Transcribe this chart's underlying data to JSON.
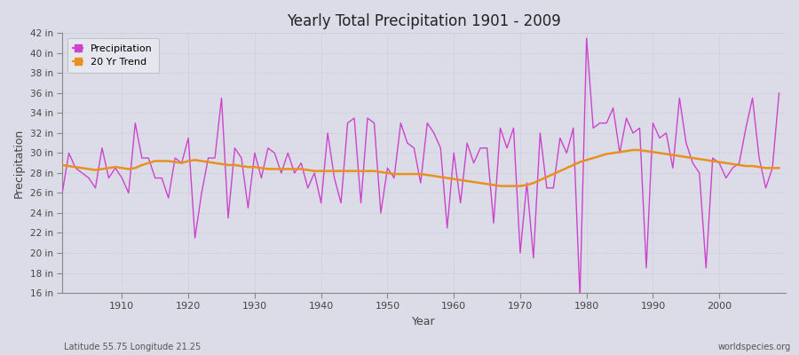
{
  "title": "Yearly Total Precipitation 1901 - 2009",
  "xlabel": "Year",
  "ylabel": "Precipitation",
  "subtitle_left": "Latitude 55.75 Longitude 21.25",
  "subtitle_right": "worldspecies.org",
  "ylim": [
    16,
    42
  ],
  "yticks": [
    16,
    18,
    20,
    22,
    24,
    26,
    28,
    30,
    32,
    34,
    36,
    38,
    40,
    42
  ],
  "ytick_labels": [
    "16 in",
    "18 in",
    "20 in",
    "22 in",
    "24 in",
    "26 in",
    "28 in",
    "30 in",
    "32 in",
    "34 in",
    "36 in",
    "38 in",
    "40 in",
    "42 in"
  ],
  "xticks": [
    1910,
    1920,
    1930,
    1940,
    1950,
    1960,
    1970,
    1980,
    1990,
    2000
  ],
  "precip_color": "#cc44cc",
  "trend_color": "#e89020",
  "bg_color": "#dcdce8",
  "plot_bg_color": "#dcdce8",
  "legend_bg": "#e8e8f0",
  "grid_color": "#c0c0cc",
  "spine_color": "#888888",
  "years": [
    1901,
    1902,
    1903,
    1904,
    1905,
    1906,
    1907,
    1908,
    1909,
    1910,
    1911,
    1912,
    1913,
    1914,
    1915,
    1916,
    1917,
    1918,
    1919,
    1920,
    1921,
    1922,
    1923,
    1924,
    1925,
    1926,
    1927,
    1928,
    1929,
    1930,
    1931,
    1932,
    1933,
    1934,
    1935,
    1936,
    1937,
    1938,
    1939,
    1940,
    1941,
    1942,
    1943,
    1944,
    1945,
    1946,
    1947,
    1948,
    1949,
    1950,
    1951,
    1952,
    1953,
    1954,
    1955,
    1956,
    1957,
    1958,
    1959,
    1960,
    1961,
    1962,
    1963,
    1964,
    1965,
    1966,
    1967,
    1968,
    1969,
    1970,
    1971,
    1972,
    1973,
    1974,
    1975,
    1976,
    1977,
    1978,
    1979,
    1980,
    1981,
    1982,
    1983,
    1984,
    1985,
    1986,
    1987,
    1988,
    1989,
    1990,
    1991,
    1992,
    1993,
    1994,
    1995,
    1996,
    1997,
    1998,
    1999,
    2000,
    2001,
    2002,
    2003,
    2004,
    2005,
    2006,
    2007,
    2008,
    2009
  ],
  "precipitation": [
    26.0,
    30.0,
    28.5,
    28.0,
    27.5,
    26.5,
    30.5,
    27.5,
    28.5,
    27.5,
    26.0,
    33.0,
    29.5,
    29.5,
    27.5,
    27.5,
    25.5,
    29.5,
    29.0,
    31.5,
    21.5,
    26.0,
    29.5,
    29.5,
    35.5,
    23.5,
    30.5,
    29.5,
    24.5,
    30.0,
    27.5,
    30.5,
    30.0,
    28.0,
    30.0,
    28.0,
    29.0,
    26.5,
    28.0,
    25.0,
    32.0,
    27.5,
    25.0,
    33.0,
    33.5,
    25.0,
    33.5,
    33.0,
    24.0,
    28.5,
    27.5,
    33.0,
    31.0,
    30.5,
    27.0,
    33.0,
    32.0,
    30.5,
    22.5,
    30.0,
    25.0,
    31.0,
    29.0,
    30.5,
    30.5,
    23.0,
    32.5,
    30.5,
    32.5,
    20.0,
    27.0,
    19.5,
    32.0,
    26.5,
    26.5,
    31.5,
    30.0,
    32.5,
    15.5,
    41.5,
    32.5,
    33.0,
    33.0,
    34.5,
    30.0,
    33.5,
    32.0,
    32.5,
    18.5,
    33.0,
    31.5,
    32.0,
    28.5,
    35.5,
    31.0,
    29.0,
    28.0,
    18.5,
    29.5,
    29.0,
    27.5,
    28.5,
    29.0,
    32.5,
    35.5,
    29.5,
    26.5,
    28.5,
    36.0
  ],
  "trend": [
    28.8,
    28.7,
    28.6,
    28.5,
    28.4,
    28.3,
    28.4,
    28.5,
    28.6,
    28.5,
    28.4,
    28.5,
    28.8,
    29.0,
    29.2,
    29.2,
    29.2,
    29.1,
    29.0,
    29.2,
    29.3,
    29.2,
    29.1,
    29.0,
    28.9,
    28.8,
    28.8,
    28.7,
    28.6,
    28.6,
    28.5,
    28.4,
    28.4,
    28.4,
    28.4,
    28.4,
    28.4,
    28.3,
    28.2,
    28.2,
    28.2,
    28.2,
    28.2,
    28.2,
    28.2,
    28.2,
    28.2,
    28.2,
    28.1,
    28.0,
    27.9,
    27.9,
    27.9,
    27.9,
    27.9,
    27.8,
    27.7,
    27.6,
    27.5,
    27.4,
    27.3,
    27.2,
    27.1,
    27.0,
    26.9,
    26.8,
    26.7,
    26.7,
    26.7,
    26.7,
    26.8,
    27.0,
    27.3,
    27.6,
    27.9,
    28.2,
    28.5,
    28.8,
    29.1,
    29.3,
    29.5,
    29.7,
    29.9,
    30.0,
    30.1,
    30.2,
    30.3,
    30.3,
    30.2,
    30.1,
    30.0,
    29.9,
    29.8,
    29.7,
    29.6,
    29.5,
    29.4,
    29.3,
    29.2,
    29.1,
    29.0,
    28.9,
    28.8,
    28.7,
    28.7,
    28.6,
    28.5,
    28.5,
    28.5
  ]
}
